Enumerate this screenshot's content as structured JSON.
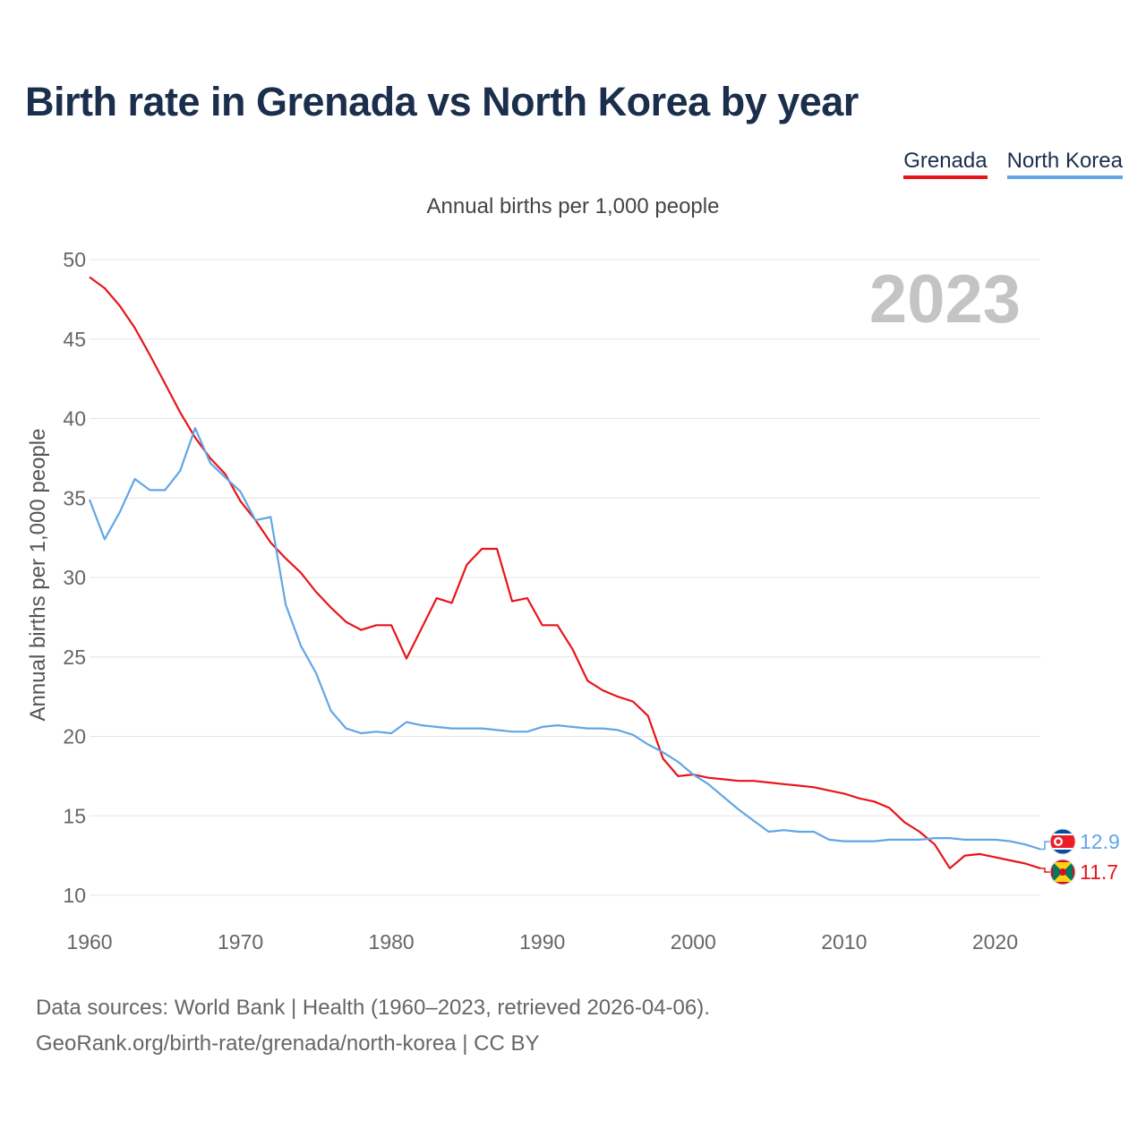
{
  "title": "Birth rate in Grenada vs North Korea by year",
  "subtitle": "Annual births per 1,000 people",
  "legend": [
    {
      "label": "Grenada",
      "color": "#e8141b"
    },
    {
      "label": "North Korea",
      "color": "#62a6e6"
    }
  ],
  "year_watermark": "2023",
  "footer": {
    "line1": "Data sources: World Bank | Health (1960–2023, retrieved 2026-04-06).",
    "line2": "GeoRank.org/birth-rate/grenada/north-korea | CC BY"
  },
  "end_labels": {
    "grenada": "11.7",
    "north_korea": "12.9"
  },
  "chart_data": {
    "type": "line",
    "title": "Birth rate in Grenada vs North Korea by year",
    "xlabel": "",
    "ylabel": "Annual births per 1,000 people",
    "xlim": [
      1960,
      2023
    ],
    "ylim": [
      10,
      50
    ],
    "yticks": [
      10,
      15,
      20,
      25,
      30,
      35,
      40,
      45,
      50
    ],
    "xticks": [
      1960,
      1970,
      1980,
      1990,
      2000,
      2010,
      2020
    ],
    "grid": true,
    "x": [
      1960,
      1961,
      1962,
      1963,
      1964,
      1965,
      1966,
      1967,
      1968,
      1969,
      1970,
      1971,
      1972,
      1973,
      1974,
      1975,
      1976,
      1977,
      1978,
      1979,
      1980,
      1981,
      1982,
      1983,
      1984,
      1985,
      1986,
      1987,
      1988,
      1989,
      1990,
      1991,
      1992,
      1993,
      1994,
      1995,
      1996,
      1997,
      1998,
      1999,
      2000,
      2001,
      2002,
      2003,
      2004,
      2005,
      2006,
      2007,
      2008,
      2009,
      2010,
      2011,
      2012,
      2013,
      2014,
      2015,
      2016,
      2017,
      2018,
      2019,
      2020,
      2021,
      2022,
      2023
    ],
    "series": [
      {
        "name": "Grenada",
        "color": "#e8141b",
        "values": [
          48.9,
          48.2,
          47.1,
          45.7,
          44.0,
          42.2,
          40.4,
          38.8,
          37.5,
          36.5,
          34.8,
          33.6,
          32.2,
          31.2,
          30.3,
          29.1,
          28.1,
          27.2,
          26.7,
          27.0,
          27.0,
          24.9,
          26.8,
          28.7,
          28.4,
          30.8,
          31.8,
          31.8,
          28.5,
          28.7,
          27.0,
          27.0,
          25.5,
          23.5,
          22.9,
          22.5,
          22.2,
          21.3,
          18.6,
          17.5,
          17.6,
          17.4,
          17.3,
          17.2,
          17.2,
          17.1,
          17.0,
          16.9,
          16.8,
          16.6,
          16.4,
          16.1,
          15.9,
          15.5,
          14.6,
          14.0,
          13.2,
          11.7,
          12.5,
          12.6,
          12.4,
          12.2,
          12.0,
          11.7
        ]
      },
      {
        "name": "North Korea",
        "color": "#62a6e6",
        "values": [
          34.9,
          32.4,
          34.1,
          36.2,
          35.5,
          35.5,
          36.7,
          39.4,
          37.2,
          36.3,
          35.4,
          33.6,
          33.8,
          28.3,
          25.7,
          24.0,
          21.6,
          20.5,
          20.2,
          20.3,
          20.2,
          20.9,
          20.7,
          20.6,
          20.5,
          20.5,
          20.5,
          20.4,
          20.3,
          20.3,
          20.6,
          20.7,
          20.6,
          20.5,
          20.5,
          20.4,
          20.1,
          19.5,
          19.0,
          18.4,
          17.6,
          17.0,
          16.2,
          15.4,
          14.7,
          14.0,
          14.1,
          14.0,
          14.0,
          13.5,
          13.4,
          13.4,
          13.4,
          13.5,
          13.5,
          13.5,
          13.6,
          13.6,
          13.5,
          13.5,
          13.5,
          13.4,
          13.2,
          12.9
        ]
      }
    ]
  }
}
